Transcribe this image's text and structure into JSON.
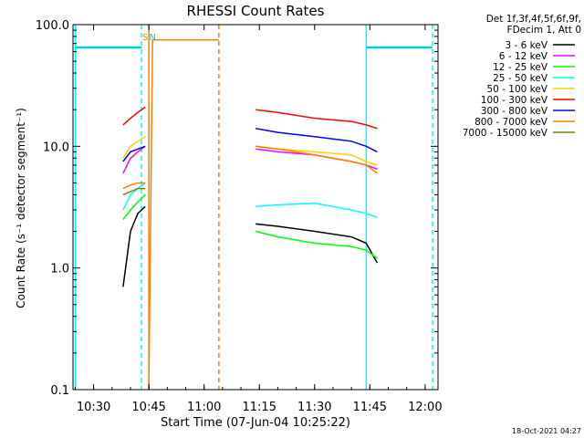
{
  "chart_data": {
    "type": "line",
    "title": "RHESSI Count Rates",
    "xlabel": "Start Time (07-Jun-04 10:25:22)",
    "ylabel": "Count Rate (s⁻¹ detector segment⁻¹)",
    "yscale": "log",
    "ylim": [
      0.1,
      100
    ],
    "xlim_minutes_after_1025": [
      -0.6,
      98.5
    ],
    "x_ticks": [
      "10:30",
      "10:45",
      "11:00",
      "11:15",
      "11:30",
      "11:45",
      "12:00"
    ],
    "y_ticks": [
      "0.1",
      "1.0",
      "10.0",
      "100.0"
    ],
    "legend_header": [
      "Det 1f,3f,4f,5f,6f,9f,",
      "FDecim 1, Att 0"
    ],
    "legend_position": "right",
    "timestamp": "18-Oct-2021 04:27",
    "annotations": [
      {
        "text": "S",
        "color": "#ff8000",
        "time": "10:44"
      },
      {
        "text": "N",
        "color": "#00d0d0",
        "time": "10:46"
      }
    ],
    "series": [
      {
        "name": "3 - 6 keV",
        "color": "#000000",
        "segments": [
          {
            "time": [
              "10:38",
              "10:40",
              "10:42",
              "10:44"
            ],
            "values": [
              0.7,
              2.0,
              2.8,
              3.2
            ]
          },
          {
            "time": [
              "11:14",
              "11:20",
              "11:30",
              "11:40",
              "11:44",
              "11:47"
            ],
            "values": [
              2.3,
              2.2,
              2.0,
              1.8,
              1.6,
              1.1
            ]
          }
        ]
      },
      {
        "name": "6 - 12 keV",
        "color": "#ff00ff",
        "segments": [
          {
            "time": [
              "10:38",
              "10:40",
              "10:42",
              "10:44"
            ],
            "values": [
              6.0,
              8.0,
              9.0,
              10.0
            ]
          },
          {
            "time": [
              "11:14",
              "11:20",
              "11:30",
              "11:40",
              "11:44",
              "11:47"
            ],
            "values": [
              9.5,
              9.0,
              8.5,
              7.5,
              7.0,
              6.5
            ]
          }
        ]
      },
      {
        "name": "12 - 25 keV",
        "color": "#00ff00",
        "segments": [
          {
            "time": [
              "10:38",
              "10:40",
              "10:42",
              "10:44"
            ],
            "values": [
              2.5,
              3.0,
              3.5,
              4.0
            ]
          },
          {
            "time": [
              "11:14",
              "11:20",
              "11:30",
              "11:40",
              "11:44",
              "11:47"
            ],
            "values": [
              2.0,
              1.8,
              1.6,
              1.5,
              1.4,
              1.2
            ]
          }
        ]
      },
      {
        "name": "25 - 50 keV",
        "color": "#00ffff",
        "segments": [
          {
            "time": [
              "10:38",
              "10:40",
              "10:42",
              "10:44"
            ],
            "values": [
              3.0,
              4.0,
              4.5,
              5.0
            ]
          },
          {
            "time": [
              "11:14",
              "11:20",
              "11:30",
              "11:40",
              "11:44",
              "11:47"
            ],
            "values": [
              3.2,
              3.3,
              3.4,
              3.0,
              2.8,
              2.6
            ]
          }
        ]
      },
      {
        "name": "50 - 100 keV",
        "color": "#ffd000",
        "segments": [
          {
            "time": [
              "10:38",
              "10:40",
              "10:42",
              "10:44"
            ],
            "values": [
              8.0,
              10.0,
              11.0,
              12.0
            ]
          },
          {
            "time": [
              "11:14",
              "11:20",
              "11:30",
              "11:40",
              "11:44",
              "11:47"
            ],
            "values": [
              10.0,
              9.5,
              9.0,
              8.5,
              7.5,
              7.0
            ]
          }
        ]
      },
      {
        "name": "100 - 300 keV",
        "color": "#ff0000",
        "segments": [
          {
            "time": [
              "10:38",
              "10:40",
              "10:42",
              "10:44"
            ],
            "values": [
              15.0,
              17.0,
              19.0,
              21.0
            ]
          },
          {
            "time": [
              "11:14",
              "11:20",
              "11:30",
              "11:40",
              "11:44",
              "11:47"
            ],
            "values": [
              20.0,
              19.0,
              17.0,
              16.0,
              15.0,
              14.0
            ]
          }
        ]
      },
      {
        "name": "300 - 800 keV",
        "color": "#0000ff",
        "segments": [
          {
            "time": [
              "10:38",
              "10:40",
              "10:42",
              "10:44"
            ],
            "values": [
              7.5,
              9.0,
              9.5,
              10.0
            ]
          },
          {
            "time": [
              "11:14",
              "11:20",
              "11:30",
              "11:40",
              "11:44",
              "11:47"
            ],
            "values": [
              14.0,
              13.0,
              12.0,
              11.0,
              10.0,
              9.0
            ]
          }
        ]
      },
      {
        "name": "800 - 7000 keV",
        "color": "#ff8000",
        "segments": [
          {
            "time": [
              "10:38",
              "10:40",
              "10:42",
              "10:44"
            ],
            "values": [
              4.5,
              4.8,
              5.0,
              5.0
            ]
          },
          {
            "time": [
              "10:45",
              "10:46",
              "11:04"
            ],
            "values": [
              0.1,
              75.0,
              75.0
            ]
          },
          {
            "time": [
              "11:14",
              "11:20",
              "11:30",
              "11:40",
              "11:44",
              "11:47"
            ],
            "values": [
              10.0,
              9.5,
              8.5,
              7.5,
              7.0,
              6.0
            ]
          }
        ]
      },
      {
        "name": "7000 - 15000 keV",
        "color": "#808000",
        "segments": [
          {
            "time": [
              "10:38",
              "10:42",
              "10:44"
            ],
            "values": [
              4.0,
              4.5,
              4.5
            ]
          }
        ]
      }
    ],
    "flags": [
      {
        "color": "#00d0d0",
        "time": [
          "10:25",
          "10:43"
        ],
        "value": 65
      },
      {
        "color": "#00d0d0",
        "time": [
          "11:44",
          "12:02"
        ],
        "value": 65
      }
    ],
    "vlines": [
      {
        "time": "10:25",
        "color": "#00ffff",
        "style": "solid"
      },
      {
        "time": "10:43",
        "color": "#00ffff",
        "style": "dashed"
      },
      {
        "time": "10:45",
        "color": "#ff8000",
        "style": "solid"
      },
      {
        "time": "11:04",
        "color": "#ff8000",
        "style": "dashed"
      },
      {
        "time": "11:44",
        "color": "#00ffff",
        "style": "solid"
      },
      {
        "time": "12:02",
        "color": "#00ffff",
        "style": "dashed"
      }
    ]
  }
}
